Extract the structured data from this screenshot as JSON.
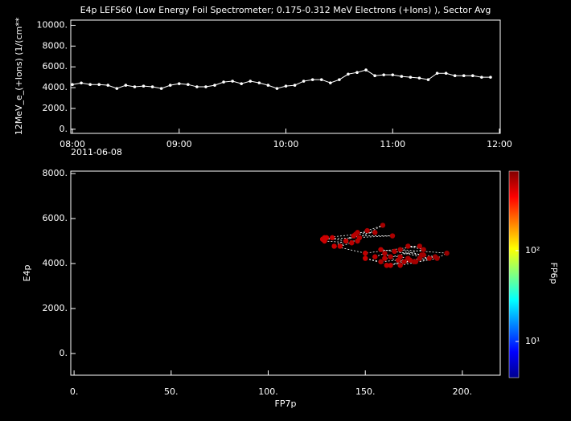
{
  "chart_data": [
    {
      "type": "line",
      "title": "E4p LEFS60 (Low Energy Foil Spectrometer; 0.175-0.312 MeV Electrons (+Ions) ), Sector Avg",
      "ylabel": "12MeV_e_(+Ions) (1/(cm**",
      "x_date": "2011-06-08",
      "x": [
        "08:00",
        "08:05",
        "08:10",
        "08:15",
        "08:20",
        "08:25",
        "08:30",
        "08:35",
        "08:40",
        "08:45",
        "08:50",
        "08:55",
        "09:00",
        "09:05",
        "09:10",
        "09:15",
        "09:20",
        "09:25",
        "09:30",
        "09:35",
        "09:40",
        "09:45",
        "09:50",
        "09:55",
        "10:00",
        "10:05",
        "10:10",
        "10:15",
        "10:20",
        "10:25",
        "10:30",
        "10:35",
        "10:40",
        "10:45",
        "10:50",
        "10:55",
        "11:00",
        "11:05",
        "11:10",
        "11:15",
        "11:20",
        "11:25",
        "11:30",
        "11:35",
        "11:40",
        "11:45",
        "11:50",
        "11:55"
      ],
      "values": [
        4300,
        4450,
        4300,
        4300,
        4230,
        3920,
        4230,
        4080,
        4150,
        4080,
        3920,
        4230,
        4380,
        4300,
        4080,
        4080,
        4230,
        4540,
        4620,
        4380,
        4620,
        4460,
        4230,
        3920,
        4150,
        4230,
        4620,
        4770,
        4770,
        4460,
        4770,
        5300,
        5460,
        5700,
        5150,
        5230,
        5230,
        5080,
        5000,
        4920,
        4770,
        5380,
        5380,
        5150,
        5150,
        5150,
        5000,
        5000
      ],
      "color": "#ffffff",
      "xlim": [
        "08:00",
        "12:00"
      ],
      "xticks": [
        "08:00",
        "09:00",
        "10:00",
        "11:00",
        "12:00"
      ],
      "ylim": [
        -400,
        10500
      ],
      "yticks": [
        {
          "value": 0,
          "label": "0."
        },
        {
          "value": 2000,
          "label": "2000."
        },
        {
          "value": 4000,
          "label": "4000."
        },
        {
          "value": 6000,
          "label": "6000."
        },
        {
          "value": 8000,
          "label": "8000."
        },
        {
          "value": 10000,
          "label": "10000."
        }
      ]
    },
    {
      "type": "scatter",
      "xlabel": "FP7p",
      "ylabel": "E4p",
      "colorbar_label": "FP6p",
      "x": [
        155,
        160,
        163,
        168,
        172,
        163,
        150,
        158,
        167,
        175,
        161,
        178,
        180,
        186,
        170,
        176,
        183,
        165,
        158,
        179,
        168,
        192,
        187,
        168,
        173,
        160,
        180,
        172,
        178,
        150,
        134,
        145,
        151,
        159,
        147,
        144,
        164,
        128,
        129,
        143,
        137,
        146,
        155,
        129,
        133,
        130,
        140,
        146
      ],
      "values": [
        4300,
        4450,
        4300,
        4300,
        4230,
        3920,
        4230,
        4080,
        4150,
        4080,
        3920,
        4230,
        4380,
        4300,
        4080,
        4080,
        4230,
        4540,
        4620,
        4380,
        4620,
        4460,
        4230,
        3920,
        4150,
        4230,
        4620,
        4770,
        4770,
        4460,
        4770,
        5300,
        5460,
        5700,
        5150,
        5230,
        5230,
        5080,
        5000,
        4920,
        4770,
        5380,
        5380,
        5150,
        5150,
        5150,
        5000,
        5000
      ],
      "z": [
        560,
        590,
        610,
        580,
        620,
        540,
        520,
        600,
        570,
        630,
        550,
        640,
        610,
        650,
        590,
        620,
        600,
        580,
        560,
        630,
        600,
        660,
        640,
        570,
        590,
        550,
        620,
        600,
        610,
        540,
        520,
        570,
        590,
        620,
        560,
        550,
        600,
        500,
        510,
        560,
        530,
        570,
        590,
        510,
        520,
        505,
        540,
        560
      ],
      "xlim": [
        -1.7,
        219.5
      ],
      "xticks": [
        {
          "value": 0,
          "label": "0."
        },
        {
          "value": 50,
          "label": "50."
        },
        {
          "value": 100,
          "label": "100."
        },
        {
          "value": 150,
          "label": "150."
        },
        {
          "value": 200,
          "label": "200."
        }
      ],
      "ylim": [
        -964,
        8107
      ],
      "yticks": [
        {
          "value": 0,
          "label": "0."
        },
        {
          "value": 2000,
          "label": "2000."
        },
        {
          "value": 4000,
          "label": "4000."
        },
        {
          "value": 6000,
          "label": "6000."
        },
        {
          "value": 8000,
          "label": "8000."
        }
      ],
      "zlim": [
        4,
        750
      ],
      "zlog": true,
      "zticks": [
        {
          "value": 10,
          "label": "10¹"
        },
        {
          "value": 100,
          "label": "10²"
        }
      ],
      "line_color": "#ffffff"
    }
  ]
}
